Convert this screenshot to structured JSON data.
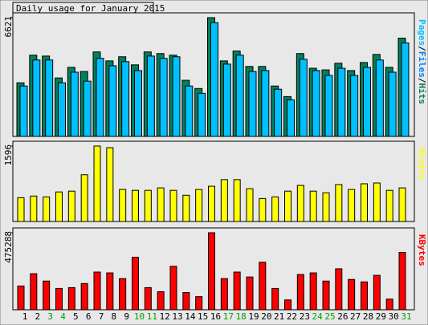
{
  "title": "Daily usage for January 2015",
  "chart_data": [
    {
      "type": "bar",
      "ylim": [
        0,
        6621
      ],
      "yticks": [
        6621
      ],
      "legend_separator": "/",
      "series": [
        {
          "name": "Hits",
          "color": "#00805c",
          "values": [
            2990,
            4530,
            4480,
            3260,
            3850,
            3620,
            4710,
            4210,
            4440,
            3990,
            4710,
            4620,
            4530,
            3130,
            2670,
            6621,
            4210,
            4760,
            3900,
            3900,
            2810,
            2220,
            4620,
            3800,
            3710,
            4080,
            3670,
            4120,
            4570,
            3850,
            5480
          ]
        },
        {
          "name": "Files",
          "color": "#0080ff",
          "values": [
            null,
            null,
            null,
            null,
            null,
            null,
            null,
            null,
            null,
            null,
            null,
            null,
            null,
            null,
            null,
            null,
            null,
            null,
            null,
            null,
            null,
            null,
            null,
            null,
            null,
            null,
            null,
            null,
            null,
            null,
            null
          ]
        },
        {
          "name": "Pages",
          "color": "#00c0ff",
          "values": [
            2810,
            4260,
            4260,
            2990,
            3580,
            3080,
            4350,
            3940,
            4170,
            3670,
            4480,
            4350,
            4440,
            2810,
            2400,
            6340,
            4030,
            4530,
            3620,
            3670,
            2630,
            2040,
            4300,
            3670,
            3400,
            3800,
            3400,
            3850,
            4260,
            3580,
            5210
          ]
        }
      ]
    },
    {
      "type": "bar",
      "ylim": [
        0,
        1596
      ],
      "yticks": [
        1596
      ],
      "series": [
        {
          "name": "Visits",
          "color": "#ffff00",
          "values": [
            503,
            538,
            520,
            625,
            642,
            989,
            1596,
            1561,
            677,
            659,
            659,
            711,
            659,
            555,
            677,
            746,
            885,
            885,
            694,
            486,
            520,
            642,
            763,
            642,
            607,
            781,
            677,
            798,
            815,
            659,
            711
          ]
        }
      ]
    },
    {
      "type": "bar",
      "ylim": [
        0,
        475288
      ],
      "yticks": [
        475288
      ],
      "series": [
        {
          "name": "KBytes",
          "color": "#ff0000",
          "values": [
            146600,
            222500,
            177000,
            131500,
            136500,
            161800,
            232600,
            227500,
            192100,
            323600,
            136500,
            111200,
            268000,
            106200,
            80900,
            475288,
            192100,
            232600,
            202200,
            293300,
            131500,
            60700,
            217400,
            227500,
            177000,
            252800,
            187100,
            171900,
            212400,
            65700,
            353900
          ]
        }
      ],
      "categories": [
        "1",
        "2",
        "3",
        "4",
        "5",
        "6",
        "7",
        "8",
        "9",
        "10",
        "11",
        "12",
        "13",
        "14",
        "15",
        "16",
        "17",
        "18",
        "19",
        "20",
        "21",
        "22",
        "23",
        "24",
        "25",
        "26",
        "27",
        "28",
        "29",
        "30",
        "31"
      ],
      "category_colors": [
        "#000000",
        "#000000",
        "#00a000",
        "#00a000",
        "#000000",
        "#000000",
        "#000000",
        "#000000",
        "#000000",
        "#00a000",
        "#00a000",
        "#000000",
        "#000000",
        "#000000",
        "#000000",
        "#000000",
        "#00a000",
        "#00a000",
        "#000000",
        "#000000",
        "#000000",
        "#000000",
        "#000000",
        "#00a000",
        "#00a000",
        "#000000",
        "#000000",
        "#000000",
        "#000000",
        "#000000",
        "#00a000"
      ]
    }
  ]
}
